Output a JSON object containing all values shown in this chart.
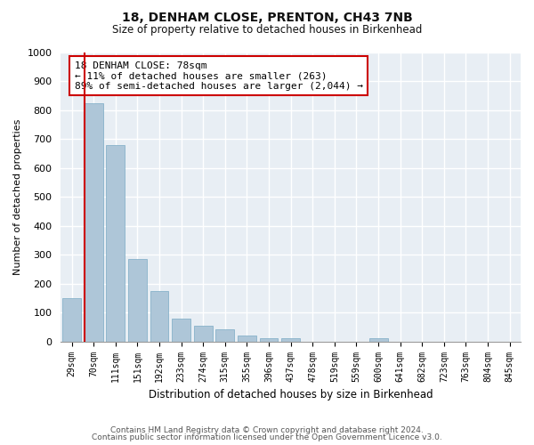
{
  "title1": "18, DENHAM CLOSE, PRENTON, CH43 7NB",
  "title2": "Size of property relative to detached houses in Birkenhead",
  "xlabel": "Distribution of detached houses by size in Birkenhead",
  "ylabel": "Number of detached properties",
  "bar_labels": [
    "29sqm",
    "70sqm",
    "111sqm",
    "151sqm",
    "192sqm",
    "233sqm",
    "274sqm",
    "315sqm",
    "355sqm",
    "396sqm",
    "437sqm",
    "478sqm",
    "519sqm",
    "559sqm",
    "600sqm",
    "641sqm",
    "682sqm",
    "723sqm",
    "763sqm",
    "804sqm",
    "845sqm"
  ],
  "bar_values": [
    150,
    825,
    680,
    285,
    175,
    80,
    55,
    42,
    20,
    10,
    10,
    0,
    0,
    0,
    10,
    0,
    0,
    0,
    0,
    0,
    0
  ],
  "bar_color": "#aec6d8",
  "bar_edge_color": "#7aaac4",
  "ylim": [
    0,
    1000
  ],
  "yticks": [
    0,
    100,
    200,
    300,
    400,
    500,
    600,
    700,
    800,
    900,
    1000
  ],
  "annotation_title": "18 DENHAM CLOSE: 78sqm",
  "annotation_line1": "← 11% of detached houses are smaller (263)",
  "annotation_line2": "89% of semi-detached houses are larger (2,044) →",
  "footer1": "Contains HM Land Registry data © Crown copyright and database right 2024.",
  "footer2": "Contains public sector information licensed under the Open Government Licence v3.0.",
  "box_color": "#cc0000",
  "background_color": "#ffffff",
  "plot_bg_color": "#e8eef4"
}
